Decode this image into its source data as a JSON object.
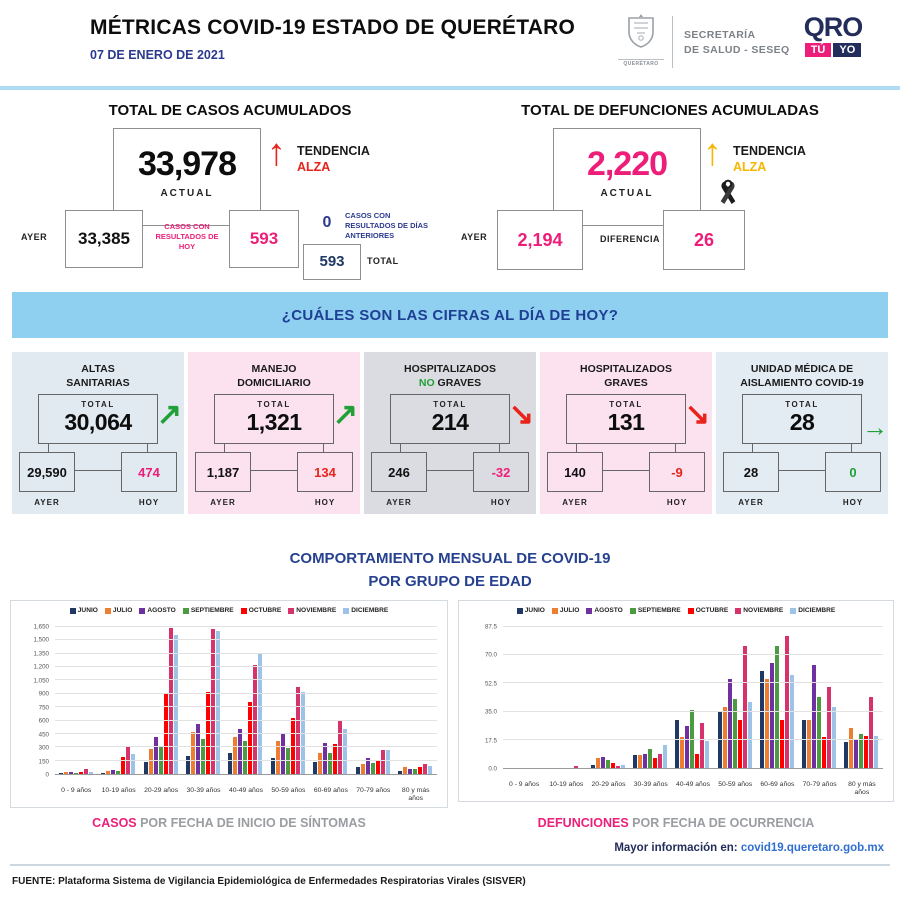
{
  "header": {
    "title": "MÉTRICAS COVID-19 ESTADO DE QUERÉTARO",
    "date": "07 DE ENERO DE 2021",
    "crest_caption": "QUERÉTARO",
    "secretaria_line1": "SECRETARÍA",
    "secretaria_line2": "DE SALUD - SESEQ",
    "logo": {
      "qro": "QRO",
      "tu": "TÚ",
      "yo": "YO"
    }
  },
  "cases": {
    "title": "TOTAL DE CASOS ACUMULADOS",
    "actual": "33,978",
    "actual_label": "ACTUAL",
    "trend_label": "TENDENCIA",
    "trend_value": "ALZA",
    "ayer_label": "AYER",
    "ayer": "33,385",
    "today_note": "CASOS CON RESULTADOS DE HOY",
    "today": "593",
    "prev_days_value": "0",
    "prev_days_label": "CASOS CON RESULTADOS DE DÍAS ANTERIORES",
    "total": "593",
    "total_label": "TOTAL"
  },
  "deaths": {
    "title": "TOTAL DE DEFUNCIONES ACUMULADAS",
    "actual": "2,220",
    "actual_label": "ACTUAL",
    "trend_label": "TENDENCIA",
    "trend_value": "ALZA",
    "ayer_label": "AYER",
    "ayer": "2,194",
    "diff_label": "DIFERENCIA",
    "diff": "26"
  },
  "banner": {
    "text": "¿CUÁLES SON LAS CIFRAS AL DÍA DE HOY?"
  },
  "cards": [
    {
      "line1": "ALTAS",
      "line2": "SANITARIAS",
      "total_label": "TOTAL",
      "total": "30,064",
      "ayer": "29,590",
      "hoy": "474",
      "ayer_label": "AYER",
      "hoy_label": "HOY",
      "trend": "up",
      "trend_color": "#21a038",
      "hoy_color": "#ed1e79",
      "bg": "#e1e9f1"
    },
    {
      "line1": "MANEJO",
      "line2": "DOMICILIARIO",
      "total_label": "TOTAL",
      "total": "1,321",
      "ayer": "1,187",
      "hoy": "134",
      "ayer_label": "AYER",
      "hoy_label": "HOY",
      "trend": "up",
      "trend_color": "#21a038",
      "hoy_color": "#e8231a",
      "bg": "#fbe2ee"
    },
    {
      "line1": "HOSPITALIZADOS",
      "line2": "NO GRAVES",
      "line2_highlight": "NO",
      "line2_rest": " GRAVES",
      "total_label": "TOTAL",
      "total": "214",
      "ayer": "246",
      "hoy": "-32",
      "ayer_label": "AYER",
      "hoy_label": "HOY",
      "trend": "down",
      "trend_color": "#e8231a",
      "hoy_color": "#ed1e79",
      "bg": "#dbdce1"
    },
    {
      "line1": "HOSPITALIZADOS",
      "line2": "GRAVES",
      "total_label": "TOTAL",
      "total": "131",
      "ayer": "140",
      "hoy": "-9",
      "ayer_label": "AYER",
      "hoy_label": "HOY",
      "trend": "down",
      "trend_color": "#e8231a",
      "hoy_color": "#e8231a",
      "bg": "#fbe2ee"
    },
    {
      "line1": "UNIDAD MÉDICA DE",
      "line2": "AISLAMIENTO COVID-19",
      "total_label": "TOTAL",
      "total": "28",
      "ayer": "28",
      "hoy": "0",
      "ayer_label": "AYER",
      "hoy_label": "HOY",
      "trend": "flat",
      "trend_color": "#21a038",
      "hoy_color": "#21a038",
      "bg": "#e3ebf3"
    }
  ],
  "charts_section": {
    "title_line1": "COMPORTAMIENTO MENSUAL DE COVID-19",
    "title_line2": "POR GRUPO DE EDAD"
  },
  "chart_data": [
    {
      "type": "bar",
      "caption_highlight": "CASOS",
      "caption_rest": " POR FECHA DE INICIO DE SÍNTOMAS",
      "categories": [
        "0 - 9 años",
        "10-19 años",
        "20-29 años",
        "30-39 años",
        "40-49 años",
        "50-59 años",
        "60-69 años",
        "70-79 años",
        "80 y más años"
      ],
      "series": [
        {
          "name": "JUNIO",
          "color": "#1f3864",
          "values": [
            10,
            8,
            140,
            200,
            240,
            185,
            135,
            75,
            30
          ]
        },
        {
          "name": "JULIO",
          "color": "#ed7d31",
          "values": [
            20,
            30,
            280,
            470,
            410,
            370,
            240,
            115,
            75
          ]
        },
        {
          "name": "AGOSTO",
          "color": "#7030a0",
          "values": [
            20,
            50,
            420,
            560,
            500,
            455,
            345,
            175,
            60
          ]
        },
        {
          "name": "SEPTIEMBRE",
          "color": "#4c9a41",
          "values": [
            15,
            35,
            300,
            390,
            375,
            295,
            235,
            120,
            55
          ]
        },
        {
          "name": "OCTUBRE",
          "color": "#ff0000",
          "values": [
            28,
            190,
            910,
            920,
            810,
            630,
            340,
            145,
            80
          ]
        },
        {
          "name": "NOVIEMBRE",
          "color": "#d6336c",
          "values": [
            60,
            310,
            1640,
            1630,
            1220,
            980,
            610,
            270,
            115
          ]
        },
        {
          "name": "DICIEMBRE",
          "color": "#9dc3e6",
          "values": [
            28,
            225,
            1560,
            1600,
            1360,
            915,
            510,
            265,
            95
          ]
        }
      ],
      "ylim": [
        0,
        1650
      ],
      "grid": true,
      "legend_position": "top",
      "y_ticks": [
        {
          "value": 0,
          "label": "0"
        },
        {
          "value": 150,
          "label": "150"
        },
        {
          "value": 300,
          "label": "300"
        },
        {
          "value": 450,
          "label": "450"
        },
        {
          "value": 600,
          "label": "600"
        },
        {
          "value": 750,
          "label": "750"
        },
        {
          "value": 900,
          "label": "900"
        },
        {
          "value": 1050,
          "label": "1,050"
        },
        {
          "value": 1200,
          "label": "1,200"
        },
        {
          "value": 1350,
          "label": "1,350"
        },
        {
          "value": 1500,
          "label": "1,500"
        },
        {
          "value": 1650,
          "label": "1,650"
        }
      ]
    },
    {
      "type": "bar",
      "caption_highlight": "DEFUNCIONES",
      "caption_rest": " POR FECHA DE OCURRENCIA",
      "categories": [
        "0 - 9 años",
        "10-19 años",
        "20-29 años",
        "30-39 años",
        "40-49 años",
        "50-59 años",
        "60-69 años",
        "70-79 años",
        "80 y más años"
      ],
      "series": [
        {
          "name": "JUNIO",
          "color": "#1f3864",
          "values": [
            0,
            0,
            2,
            8,
            30,
            35,
            60,
            30,
            16
          ]
        },
        {
          "name": "JULIO",
          "color": "#ed7d31",
          "values": [
            0,
            0,
            6,
            8,
            19,
            38,
            55,
            30,
            25
          ]
        },
        {
          "name": "AGOSTO",
          "color": "#7030a0",
          "values": [
            0,
            0,
            7,
            9,
            26,
            55,
            65,
            64,
            18
          ]
        },
        {
          "name": "SEPTIEMBRE",
          "color": "#4c9a41",
          "values": [
            0,
            0,
            5,
            12,
            36,
            43,
            76,
            44,
            21
          ]
        },
        {
          "name": "OCTUBRE",
          "color": "#ff0000",
          "values": [
            0,
            0,
            3,
            6,
            9,
            30,
            30,
            19,
            20
          ]
        },
        {
          "name": "NOVIEMBRE",
          "color": "#d6336c",
          "values": [
            0,
            1,
            1,
            9,
            28,
            76,
            82,
            50,
            44
          ]
        },
        {
          "name": "DICIEMBRE",
          "color": "#9dc3e6",
          "values": [
            0,
            0,
            2,
            14,
            17,
            41,
            58,
            38,
            20
          ]
        }
      ],
      "ylim": [
        0,
        87.5
      ],
      "grid": true,
      "legend_position": "top",
      "y_ticks": [
        {
          "value": 0,
          "label": "0.0"
        },
        {
          "value": 17.5,
          "label": "17.5"
        },
        {
          "value": 35,
          "label": "35.0"
        },
        {
          "value": 52.5,
          "label": "52.5"
        },
        {
          "value": 70,
          "label": "70.0"
        },
        {
          "value": 87.5,
          "label": "87.5"
        }
      ]
    }
  ],
  "footer": {
    "more_info_label": "Mayor información en:",
    "more_info_link": "covid19.queretaro.gob.mx",
    "source": "FUENTE: Plataforma Sistema  de Vigilancia Epidemiológica de Enfermedades Respiratorias Virales (SISVER)"
  },
  "colors": {
    "accent_pink": "#ed1e79",
    "red": "#e8231a",
    "green": "#21a038",
    "amber": "#f5b700",
    "navy": "#2b3990",
    "banner_blue": "#8fcfef",
    "link_blue": "#2f6fd0"
  }
}
